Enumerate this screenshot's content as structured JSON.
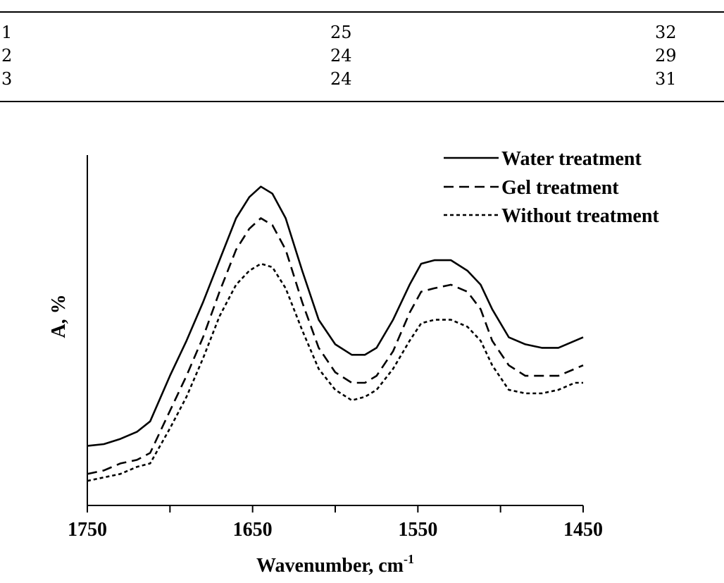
{
  "table": {
    "rows": [
      [
        "1",
        "25",
        "32"
      ],
      [
        "2",
        "24",
        "29"
      ],
      [
        "3",
        "24",
        "31"
      ]
    ]
  },
  "chart_data": {
    "type": "line",
    "xlabel": "Wavenumber, cm",
    "xlabel_sup": "-1",
    "ylabel": "A, %",
    "xlim": [
      1750,
      1450
    ],
    "x_reversed": true,
    "ylim": [
      0,
      1
    ],
    "xticks": [
      "1750",
      "1650",
      "1550",
      "1450"
    ],
    "y_tick_labels": false,
    "grid": false,
    "legend_position": "top-right",
    "series": [
      {
        "name": "Water treatment",
        "style": "solid",
        "x": [
          1750,
          1740,
          1730,
          1720,
          1712,
          1700,
          1690,
          1680,
          1670,
          1660,
          1652,
          1645,
          1638,
          1630,
          1620,
          1610,
          1600,
          1590,
          1582,
          1575,
          1565,
          1555,
          1548,
          1540,
          1530,
          1520,
          1512,
          1505,
          1495,
          1485,
          1475,
          1465,
          1455,
          1450
        ],
        "y": [
          0.17,
          0.175,
          0.19,
          0.21,
          0.24,
          0.37,
          0.47,
          0.58,
          0.7,
          0.82,
          0.88,
          0.91,
          0.89,
          0.82,
          0.67,
          0.53,
          0.46,
          0.43,
          0.43,
          0.45,
          0.53,
          0.63,
          0.69,
          0.7,
          0.7,
          0.67,
          0.63,
          0.56,
          0.48,
          0.46,
          0.45,
          0.45,
          0.47,
          0.48
        ]
      },
      {
        "name": "Gel treatment",
        "style": "dashed",
        "x": [
          1750,
          1740,
          1730,
          1720,
          1712,
          1700,
          1690,
          1680,
          1670,
          1660,
          1652,
          1645,
          1638,
          1630,
          1620,
          1610,
          1600,
          1590,
          1582,
          1575,
          1565,
          1555,
          1548,
          1540,
          1530,
          1520,
          1512,
          1505,
          1495,
          1485,
          1475,
          1465,
          1455,
          1450
        ],
        "y": [
          0.09,
          0.1,
          0.12,
          0.13,
          0.15,
          0.27,
          0.37,
          0.48,
          0.61,
          0.73,
          0.79,
          0.82,
          0.8,
          0.73,
          0.58,
          0.45,
          0.38,
          0.35,
          0.35,
          0.37,
          0.44,
          0.55,
          0.61,
          0.62,
          0.63,
          0.61,
          0.56,
          0.47,
          0.4,
          0.37,
          0.37,
          0.37,
          0.39,
          0.4
        ]
      },
      {
        "name": "Without treatment",
        "style": "dotted",
        "x": [
          1750,
          1740,
          1730,
          1720,
          1712,
          1700,
          1690,
          1680,
          1670,
          1660,
          1652,
          1645,
          1638,
          1630,
          1620,
          1610,
          1600,
          1590,
          1582,
          1575,
          1565,
          1555,
          1548,
          1540,
          1530,
          1520,
          1512,
          1505,
          1495,
          1485,
          1475,
          1465,
          1455,
          1450
        ],
        "y": [
          0.07,
          0.08,
          0.09,
          0.11,
          0.12,
          0.22,
          0.31,
          0.42,
          0.54,
          0.63,
          0.67,
          0.69,
          0.68,
          0.62,
          0.5,
          0.39,
          0.33,
          0.3,
          0.31,
          0.33,
          0.39,
          0.47,
          0.52,
          0.53,
          0.53,
          0.51,
          0.47,
          0.4,
          0.33,
          0.32,
          0.32,
          0.33,
          0.35,
          0.35
        ]
      }
    ]
  }
}
